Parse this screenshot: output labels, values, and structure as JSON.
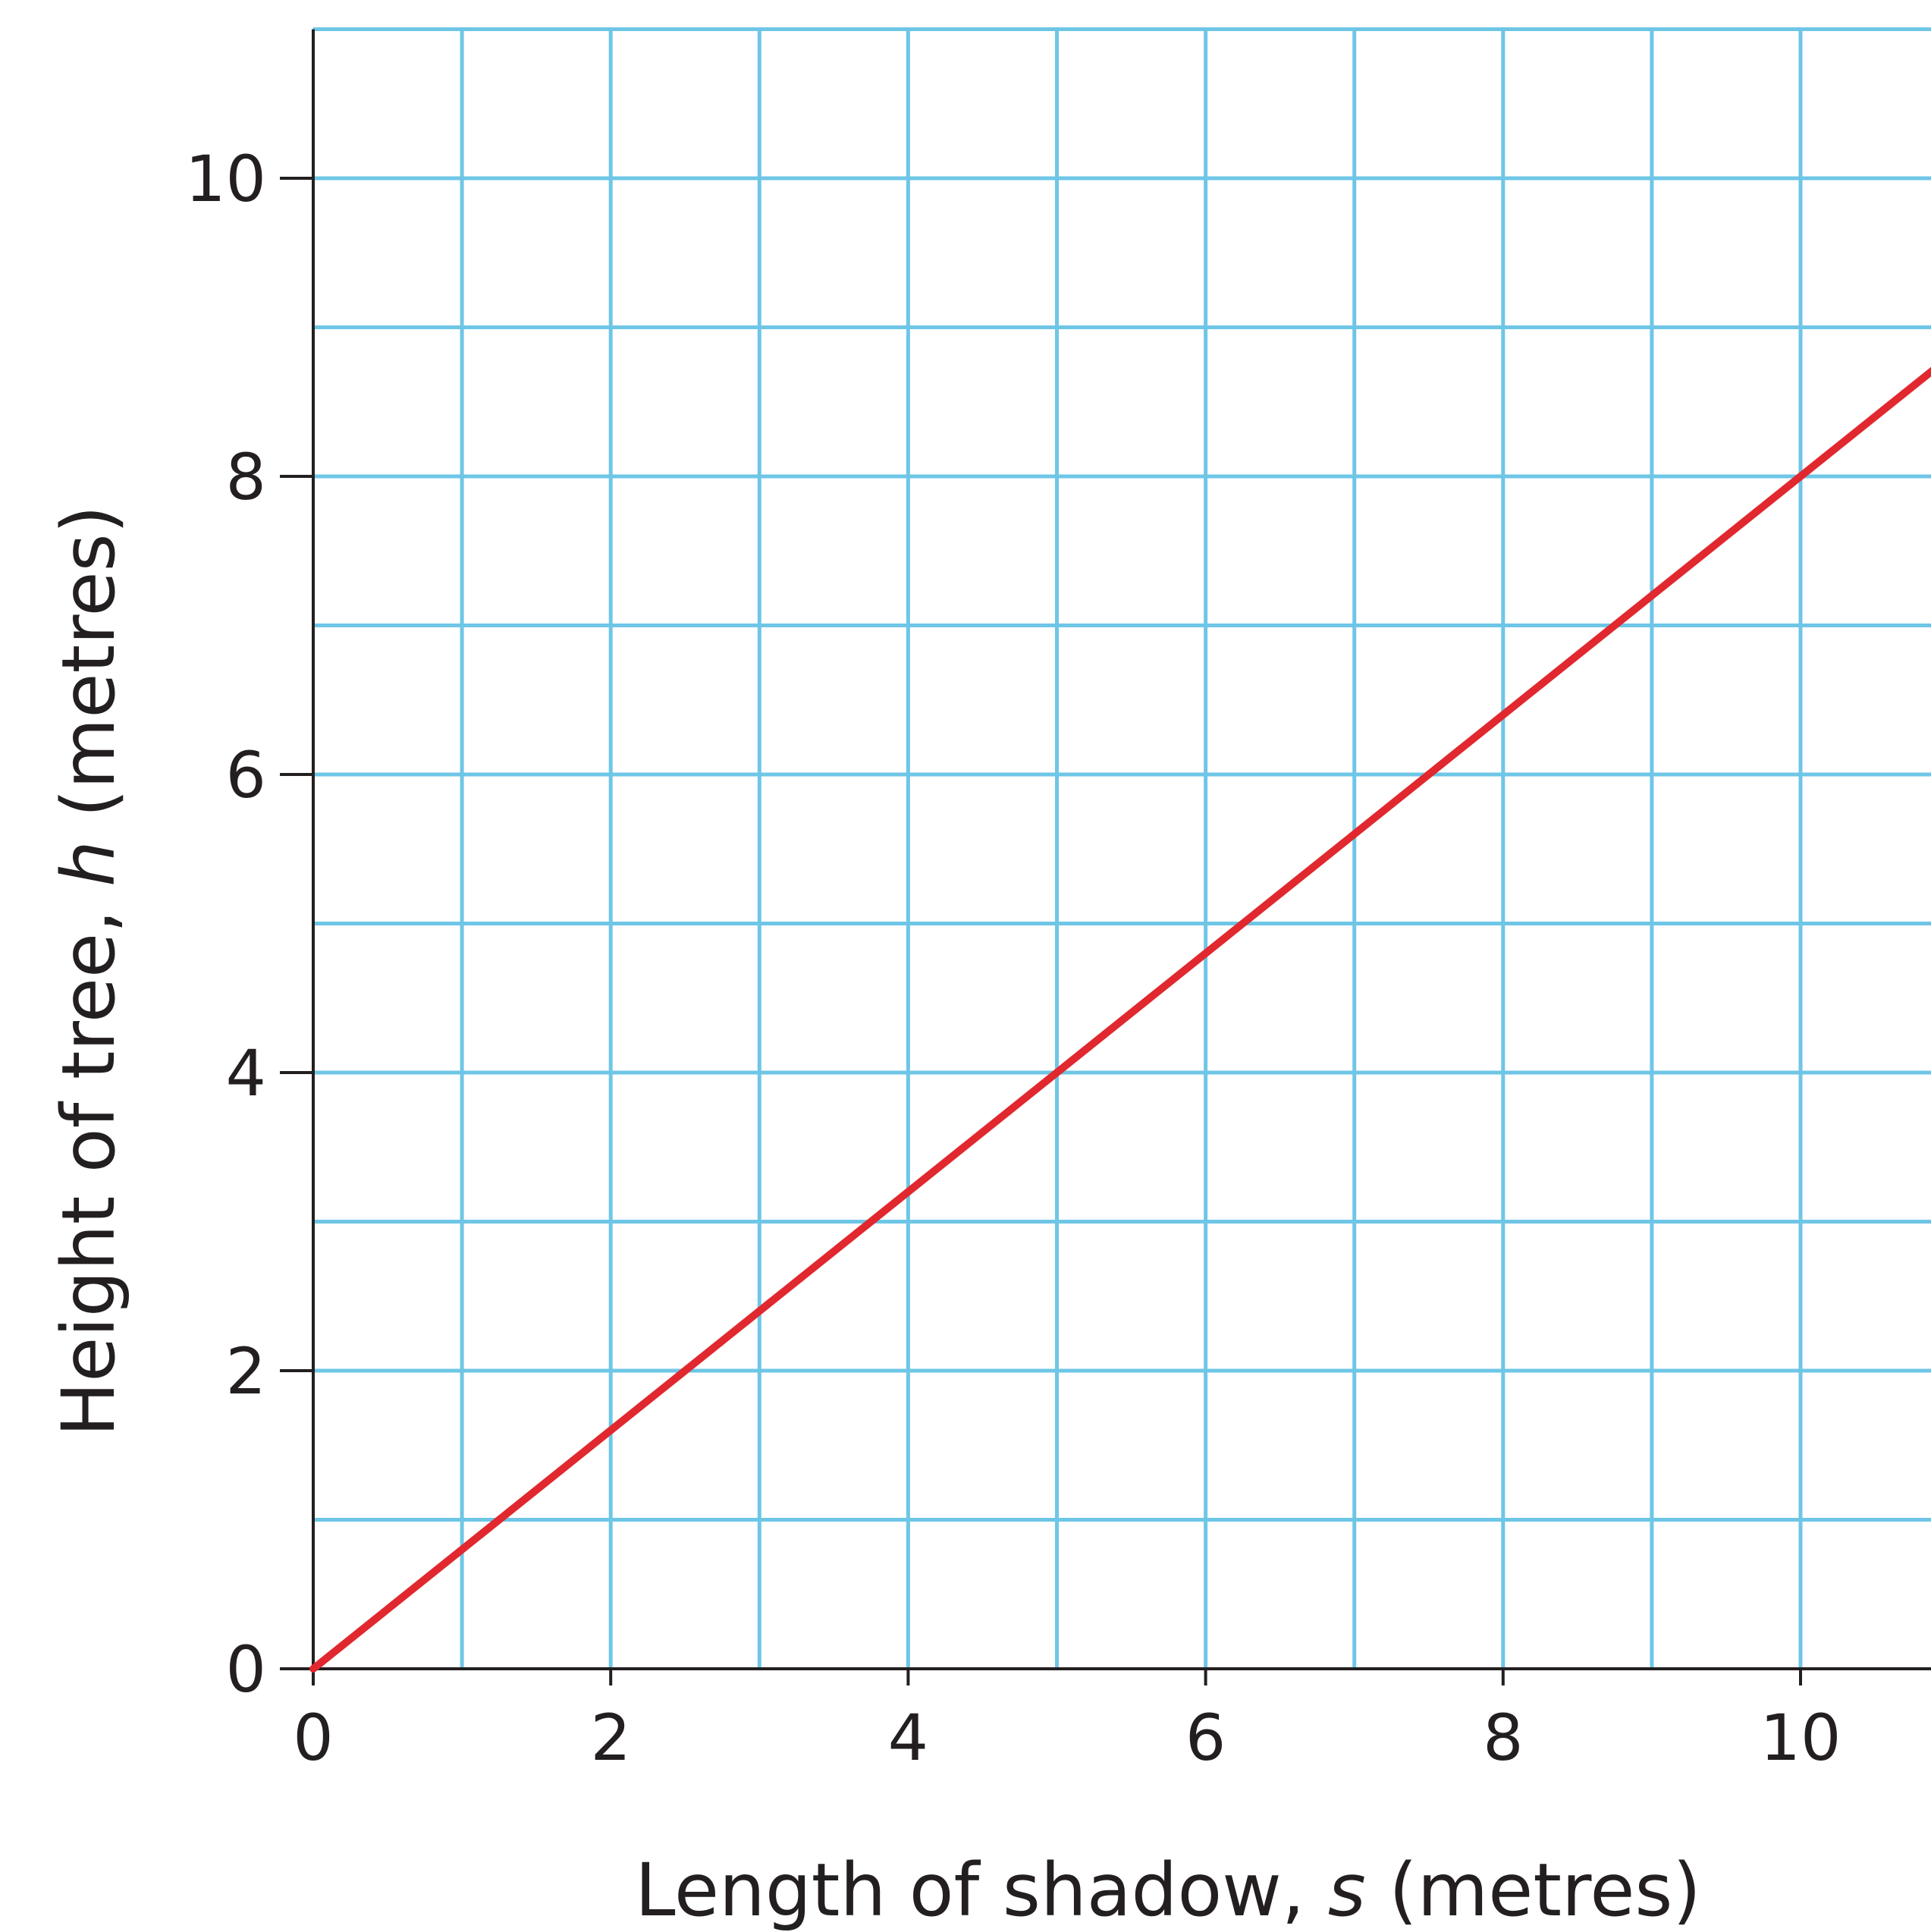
{
  "chart_data": {
    "type": "line",
    "title": "",
    "xlabel": {
      "prefix": "Length of shadow, ",
      "variable": "s",
      "suffix": " (metres)"
    },
    "ylabel": {
      "prefix": "Height of tree, ",
      "variable": "h",
      "suffix": " (metres)"
    },
    "xlim": [
      0,
      10.9
    ],
    "ylim": [
      0,
      11
    ],
    "x_ticks": [
      0,
      2,
      4,
      6,
      8,
      10
    ],
    "y_ticks": [
      0,
      2,
      4,
      6,
      8,
      10
    ],
    "x_tick_labels": [
      "0",
      "2",
      "4",
      "6",
      "8",
      "10"
    ],
    "y_tick_labels": [
      "0",
      "2",
      "4",
      "6",
      "8",
      "10"
    ],
    "grid": true,
    "grid_step": 1,
    "series": [
      {
        "x": [
          0,
          10.9
        ],
        "y": [
          0,
          8.72
        ]
      }
    ],
    "colors": {
      "line": "#e0282e",
      "grid": "#6ec6e6",
      "axis": "#231f20",
      "text": "#231f20"
    }
  }
}
